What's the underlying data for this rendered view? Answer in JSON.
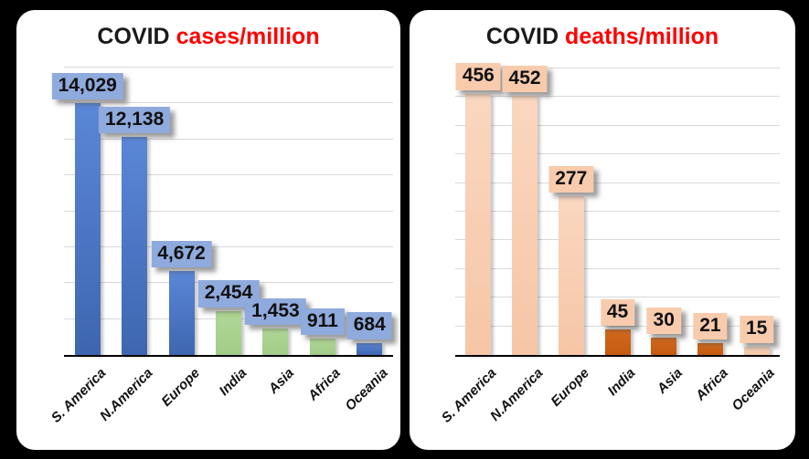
{
  "page": {
    "background_color": "#000000",
    "panel_color": "#ffffff"
  },
  "chart_data": [
    {
      "type": "bar",
      "title_parts": [
        {
          "text": "COVID",
          "color": "#1a1a1a"
        },
        {
          "text": "cases/million",
          "color": "#ff0000"
        }
      ],
      "categories": [
        "S. America",
        "N.America",
        "Europe",
        "India",
        "Asia",
        "Africa",
        "Oceania"
      ],
      "values": [
        14029,
        12138,
        4672,
        2454,
        1453,
        911,
        684
      ],
      "value_labels": [
        "14,029",
        "12,138",
        "4,672",
        "2,454",
        "1,453",
        "911",
        "684"
      ],
      "bar_colors": [
        "#3E66B0",
        "#3E66B0",
        "#3E66B0",
        "#A2CC87",
        "#A2CC87",
        "#A2CC87",
        "#3E66B0"
      ],
      "bar_colors_top": [
        "#5B87D8",
        "#5B87D8",
        "#5B87D8",
        "#AFD796",
        "#AFD796",
        "#AFD796",
        "#5B87D8"
      ],
      "value_label_bg": "#8FAADC",
      "gridline_color": "#d9d9d9",
      "axis_line_color": "#000000",
      "ylim": [
        0,
        16000
      ],
      "gridline_step": 2000,
      "grid": true,
      "legend": "none",
      "xlabel": "",
      "ylabel": ""
    },
    {
      "type": "bar",
      "title_parts": [
        {
          "text": "COVID",
          "color": "#1a1a1a"
        },
        {
          "text": "deaths/million",
          "color": "#ff0000"
        }
      ],
      "categories": [
        "S. America",
        "N.America",
        "Europe",
        "India",
        "Asia",
        "Africa",
        "Oceania"
      ],
      "values": [
        456,
        452,
        277,
        45,
        30,
        21,
        15
      ],
      "value_labels": [
        "456",
        "452",
        "277",
        "45",
        "30",
        "21",
        "15"
      ],
      "bar_colors": [
        "#F6C6A6",
        "#F6C6A6",
        "#F6C6A6",
        "#C55A11",
        "#C55A11",
        "#C55A11",
        "#F6C6A6"
      ],
      "bar_colors_top": [
        "#FAD7C0",
        "#FAD7C0",
        "#FAD7C0",
        "#D2691E",
        "#D2691E",
        "#D2691E",
        "#FAD7C0"
      ],
      "value_label_bg": "#F8CBAD",
      "gridline_color": "#d9d9d9",
      "axis_line_color": "#000000",
      "ylim": [
        0,
        500
      ],
      "gridline_step": 50,
      "grid": true,
      "legend": "none",
      "xlabel": "",
      "ylabel": ""
    }
  ]
}
